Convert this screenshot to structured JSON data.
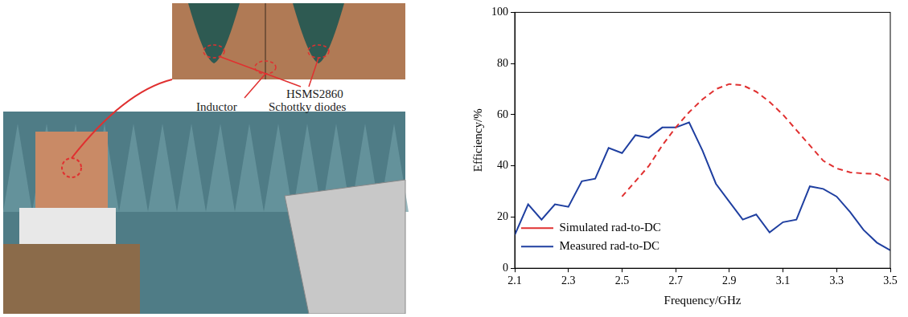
{
  "photo_labels": [
    "HSMS2860",
    "Schottky diodes",
    "Inductor"
  ],
  "chart_data": {
    "type": "line",
    "x_label": "Frequency/GHz",
    "y_label": "Efficiency/%",
    "xlim": [
      2.1,
      3.5
    ],
    "xticks": [
      2.1,
      2.3,
      2.5,
      2.7,
      2.9,
      3.1,
      3.3,
      3.5
    ],
    "ylim": [
      0,
      100
    ],
    "yticks": [
      0,
      20,
      40,
      60,
      80,
      100
    ],
    "grid": false,
    "legend": "top-right",
    "series": [
      {
        "name": "Simulated rad-to-DC",
        "color": "#e03030",
        "line_style": "dashed",
        "marker": "none",
        "x": [
          2.5,
          2.55,
          2.6,
          2.65,
          2.7,
          2.75,
          2.8,
          2.85,
          2.9,
          2.95,
          3.0,
          3.05,
          3.1,
          3.15,
          3.2,
          3.25,
          3.3,
          3.35,
          3.4,
          3.45,
          3.5
        ],
        "values": [
          28,
          34,
          40,
          48,
          55,
          61,
          66,
          70,
          72,
          71.5,
          69,
          65,
          60,
          54,
          48,
          42,
          39,
          37.5,
          37,
          36.8,
          34
        ]
      },
      {
        "name": "Measured rad-to-DC",
        "color": "#1f3fa0",
        "line_style": "solid",
        "marker": "none",
        "x": [
          2.1,
          2.15,
          2.2,
          2.25,
          2.3,
          2.35,
          2.4,
          2.45,
          2.5,
          2.55,
          2.6,
          2.65,
          2.7,
          2.75,
          2.8,
          2.85,
          2.9,
          2.95,
          3.0,
          3.05,
          3.1,
          3.15,
          3.2,
          3.25,
          3.3,
          3.35,
          3.4,
          3.45,
          3.5
        ],
        "values": [
          13,
          25,
          19,
          25,
          24,
          34,
          35,
          47,
          45,
          52,
          51,
          55,
          55,
          57,
          46,
          33,
          26,
          19,
          21,
          14,
          18,
          19,
          32,
          31,
          28,
          22,
          15,
          10,
          7
        ]
      }
    ]
  }
}
